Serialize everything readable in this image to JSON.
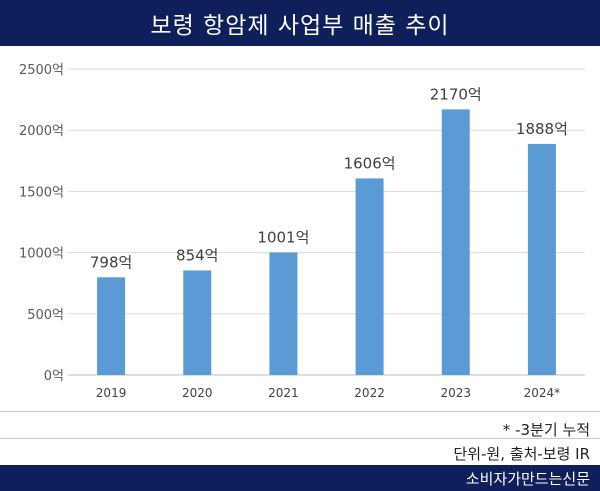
{
  "title": "보령 항암제 사업부 매출 추이",
  "notes": {
    "cumulative": "* -3분기 누적",
    "source": "단위-원, 출처-보령 IR"
  },
  "footer": {
    "brand": "소비자가만드는신문"
  },
  "colors": {
    "header_bg": "#0e1f5b",
    "bar": "#5b9bd5"
  },
  "chart_data": {
    "type": "bar",
    "categories": [
      "2019",
      "2020",
      "2021",
      "2022",
      "2023",
      "2024*"
    ],
    "values": [
      798,
      854,
      1001,
      1606,
      2170,
      1888
    ],
    "data_labels": [
      "798억",
      "854억",
      "1001억",
      "1606억",
      "2170억",
      "1888억"
    ],
    "y_ticks": [
      "0억",
      "500억",
      "1000억",
      "1500억",
      "2000억",
      "2500억"
    ],
    "ylim": [
      0,
      2500
    ],
    "grid": true,
    "legend": "none"
  }
}
